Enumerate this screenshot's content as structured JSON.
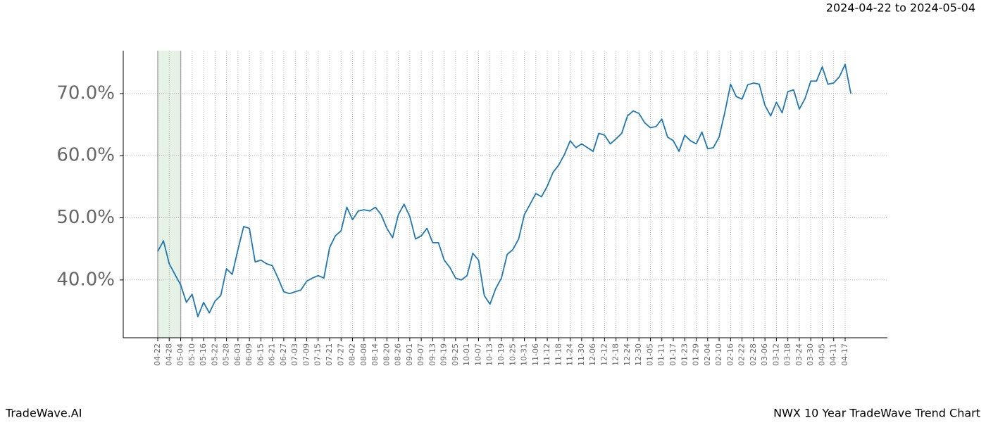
{
  "chart_data": {
    "type": "line",
    "title": "NWX 10 Year TradeWave Trend Chart",
    "subtitle": "2024-04-22 to 2024-05-04",
    "brand": "TradeWave.AI",
    "highlight": [
      "04-22",
      "05-04"
    ],
    "highlight_color": "#e6f2e6",
    "grid": true,
    "categories": [
      "04-22",
      null,
      "04-28",
      null,
      "05-04",
      null,
      "05-10",
      null,
      "05-16",
      null,
      "05-22",
      null,
      "05-28",
      null,
      "06-03",
      null,
      "06-09",
      null,
      "06-15",
      null,
      "06-21",
      null,
      "06-27",
      null,
      "07-03",
      null,
      "07-09",
      null,
      "07-15",
      null,
      "07-21",
      null,
      "07-27",
      null,
      "08-02",
      null,
      "08-08",
      null,
      "08-14",
      null,
      "08-20",
      null,
      "08-26",
      null,
      "09-01",
      null,
      "09-07",
      null,
      "09-13",
      null,
      "09-19",
      null,
      "09-25",
      null,
      "10-01",
      null,
      "10-07",
      null,
      "10-13",
      null,
      "10-19",
      null,
      "10-25",
      null,
      "10-31",
      null,
      "11-06",
      null,
      "11-12",
      null,
      "11-18",
      null,
      "11-24",
      null,
      "11-30",
      null,
      "12-06",
      null,
      "12-12",
      null,
      "12-18",
      null,
      "12-24",
      null,
      "12-30",
      null,
      "01-05",
      null,
      "01-11",
      null,
      "01-17",
      null,
      "01-23",
      null,
      "01-29",
      null,
      "02-04",
      null,
      "02-10",
      null,
      "02-16",
      null,
      "02-22",
      null,
      "02-28",
      null,
      "03-06",
      null,
      "03-12",
      null,
      "03-18",
      null,
      "03-24",
      null,
      "03-30",
      null,
      "04-05",
      null,
      "04-11",
      null,
      "04-17",
      null
    ],
    "series": [
      {
        "name": "NWX",
        "color": "#1f77b4",
        "values": [
          44.6,
          46.3,
          42.6,
          40.9,
          39.2,
          36.4,
          37.7,
          34.1,
          36.4,
          34.7,
          36.6,
          37.5,
          41.8,
          40.9,
          44.9,
          48.6,
          48.3,
          42.9,
          43.2,
          42.6,
          42.3,
          40.3,
          38.1,
          37.8,
          38.1,
          38.4,
          39.8,
          40.3,
          40.7,
          40.3,
          45.2,
          47.1,
          47.9,
          51.7,
          49.7,
          51.1,
          51.3,
          51.1,
          51.7,
          50.5,
          48.3,
          46.8,
          50.5,
          52.2,
          50.2,
          46.6,
          47.1,
          48.3,
          46.0,
          46.0,
          43.2,
          42.0,
          40.3,
          40.0,
          40.7,
          44.3,
          43.2,
          37.5,
          36.1,
          38.6,
          40.3,
          44.1,
          44.9,
          46.6,
          50.5,
          52.2,
          53.9,
          53.4,
          55.1,
          57.3,
          58.5,
          60.2,
          62.4,
          61.3,
          61.9,
          61.3,
          60.7,
          63.6,
          63.3,
          61.9,
          62.7,
          63.6,
          66.4,
          67.2,
          66.8,
          65.3,
          64.5,
          64.7,
          65.9,
          63.0,
          62.4,
          60.7,
          63.3,
          62.4,
          61.9,
          63.8,
          61.1,
          61.3,
          63.0,
          67.0,
          71.5,
          69.5,
          69.1,
          71.4,
          71.7,
          71.5,
          68.1,
          66.4,
          68.6,
          66.9,
          70.3,
          70.6,
          67.5,
          69.2,
          72.0,
          72.0,
          74.3,
          71.5,
          71.7,
          72.7,
          74.7,
          70.0
        ]
      }
    ],
    "ylim": [
      30.7,
      76.9
    ],
    "yticks": [
      {
        "value": 40,
        "label": "40.0%"
      },
      {
        "value": 50,
        "label": "50.0%"
      },
      {
        "value": 60,
        "label": "60.0%"
      },
      {
        "value": 70,
        "label": "70.0%"
      }
    ]
  }
}
